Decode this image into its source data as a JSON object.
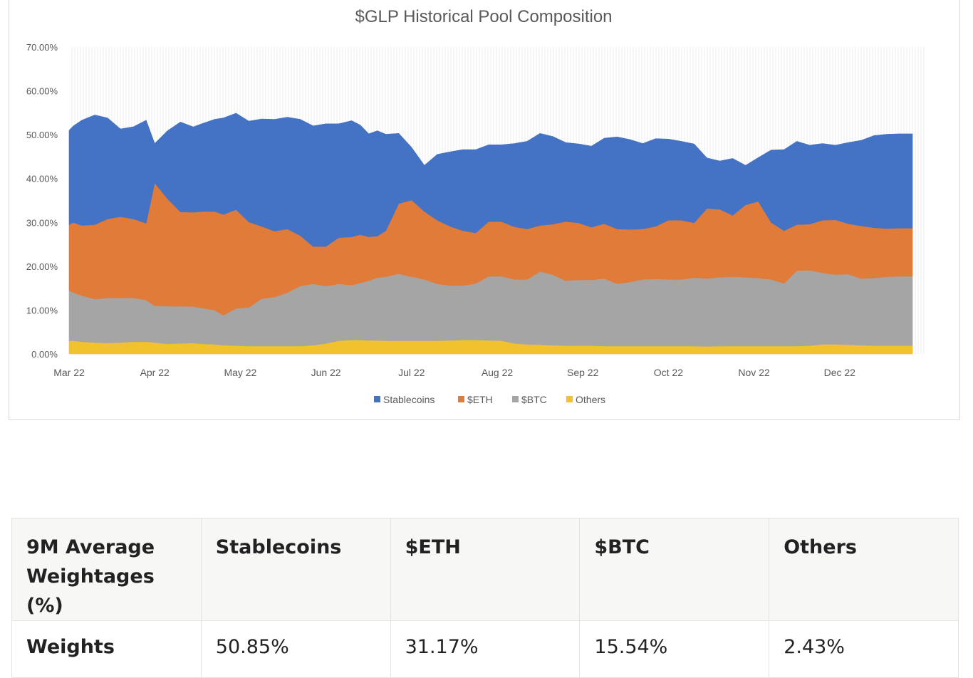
{
  "chart_data": {
    "type": "area",
    "stacked": true,
    "title": "$GLP Historical Pool Composition",
    "xlabel": "",
    "ylabel": "",
    "ylim": [
      0,
      70
    ],
    "y_ticks": [
      "0.00%",
      "10.00%",
      "20.00%",
      "30.00%",
      "40.00%",
      "50.00%",
      "60.00%",
      "70.00%"
    ],
    "x_ticks": [
      "Mar 22",
      "Apr 22",
      "May 22",
      "Jun 22",
      "Jul 22",
      "Aug 22",
      "Sep 22",
      "Oct 22",
      "Nov 22",
      "Dec 22"
    ],
    "x_domain": [
      0,
      10
    ],
    "grid": false,
    "legend_position": "bottom",
    "legend": [
      "Stablecoins",
      "$ETH",
      "$BTC",
      "Others"
    ],
    "x": [
      0,
      0.05,
      0.15,
      0.3,
      0.45,
      0.6,
      0.75,
      0.9,
      1.0,
      1.15,
      1.3,
      1.45,
      1.55,
      1.7,
      1.8,
      1.95,
      2.1,
      2.25,
      2.4,
      2.55,
      2.7,
      2.85,
      3.0,
      3.15,
      3.3,
      3.4,
      3.5,
      3.6,
      3.7,
      3.85,
      4.0,
      4.15,
      4.3,
      4.45,
      4.6,
      4.75,
      4.9,
      5.05,
      5.2,
      5.35,
      5.5,
      5.65,
      5.8,
      5.95,
      6.1,
      6.25,
      6.4,
      6.55,
      6.7,
      6.85,
      7.0,
      7.15,
      7.3,
      7.45,
      7.6,
      7.75,
      7.9,
      8.05,
      8.2,
      8.35,
      8.5,
      8.65,
      8.8,
      8.95,
      9.1,
      9.25,
      9.4,
      9.55,
      9.7,
      9.85
    ],
    "series": [
      {
        "name": "Others",
        "color": "#F2C12E",
        "values": [
          3,
          3,
          2.8,
          2.6,
          2.5,
          2.6,
          2.8,
          2.8,
          2.6,
          2.3,
          2.4,
          2.5,
          2.3,
          2.2,
          2,
          1.9,
          1.8,
          1.8,
          1.8,
          1.8,
          1.8,
          2,
          2.4,
          3,
          3.2,
          3.2,
          3.1,
          3.1,
          3,
          3,
          3,
          3,
          3,
          3.1,
          3.2,
          3.2,
          3.1,
          3,
          2.4,
          2.2,
          2.1,
          2,
          1.9,
          1.9,
          1.9,
          1.8,
          1.8,
          1.8,
          1.8,
          1.8,
          1.8,
          1.8,
          1.8,
          1.7,
          1.8,
          1.8,
          1.8,
          1.8,
          1.8,
          1.8,
          1.8,
          1.9,
          2.2,
          2.2,
          2.1,
          2,
          1.9,
          1.9,
          1.9,
          1.9
        ]
      },
      {
        "name": "$BTC",
        "color": "#A5A5A5",
        "values": [
          11.5,
          11,
          10.5,
          9.9,
          10.3,
          10.2,
          10,
          9.5,
          8.4,
          8.6,
          8.5,
          8.3,
          8.2,
          7.8,
          6.8,
          8.5,
          8.8,
          10.8,
          11.2,
          12.2,
          13.7,
          14,
          13.1,
          13,
          12.5,
          13,
          13.6,
          14.3,
          14.6,
          15.3,
          14.6,
          14,
          13,
          12.5,
          12.4,
          12.9,
          14.6,
          14.7,
          14.6,
          14.8,
          16.7,
          16.1,
          14.8,
          15,
          15,
          15.4,
          14.2,
          14.6,
          15.2,
          15.3,
          15.2,
          15.2,
          15.6,
          15.5,
          15.7,
          15.8,
          15.7,
          15.5,
          15.2,
          14.3,
          17.2,
          17.2,
          16.3,
          15.9,
          16.1,
          15.2,
          15.4,
          15.7,
          15.8,
          15.8
        ]
      },
      {
        "name": "$ETH",
        "color": "#E07B39",
        "values": [
          15,
          16,
          16,
          17,
          18,
          18.5,
          18,
          17.5,
          28,
          24.5,
          21.5,
          21.5,
          22,
          22.5,
          23,
          22.5,
          19.5,
          16.5,
          15,
          14.5,
          11.5,
          8.5,
          9,
          10.5,
          11,
          11,
          10,
          9.5,
          10.5,
          16,
          17.5,
          15.5,
          14.5,
          13.5,
          12.5,
          11.5,
          12.5,
          12.5,
          12,
          11.5,
          10.5,
          11.5,
          13.5,
          13,
          12,
          12.5,
          12.5,
          12,
          11.5,
          12,
          13.5,
          13.5,
          12.5,
          16,
          15.5,
          14,
          16.5,
          17.5,
          13,
          12,
          10.5,
          10.5,
          12,
          12.5,
          11.5,
          12,
          11.5,
          11,
          11,
          11
        ]
      },
      {
        "name": "Stablecoins",
        "color": "#4472C4",
        "values": [
          21.5,
          22,
          24,
          25,
          23,
          20,
          21,
          23.5,
          9,
          15.5,
          20.5,
          19.5,
          20,
          21,
          22,
          22,
          23,
          24.5,
          25.5,
          25.5,
          26.5,
          27.5,
          28,
          26,
          26.5,
          25,
          23.5,
          24,
          22,
          16,
          12,
          10.5,
          15,
          17,
          18.5,
          19,
          17.5,
          17.5,
          19,
          20,
          21,
          20,
          18,
          18,
          18.5,
          19.5,
          21,
          20.5,
          19.5,
          20,
          18.5,
          18,
          18,
          11.5,
          11,
          13,
          9,
          10,
          16.5,
          18.5,
          19,
          18,
          17.5,
          17,
          18.5,
          19.5,
          21,
          21.5,
          21.5,
          21.5
        ]
      }
    ]
  },
  "table": {
    "header": [
      "9M Average Weightages (%)",
      "Stablecoins",
      "$ETH",
      "$BTC",
      "Others"
    ],
    "rows": [
      [
        "Weights",
        "50.85%",
        "31.17%",
        "15.54%",
        "2.43%"
      ]
    ]
  }
}
